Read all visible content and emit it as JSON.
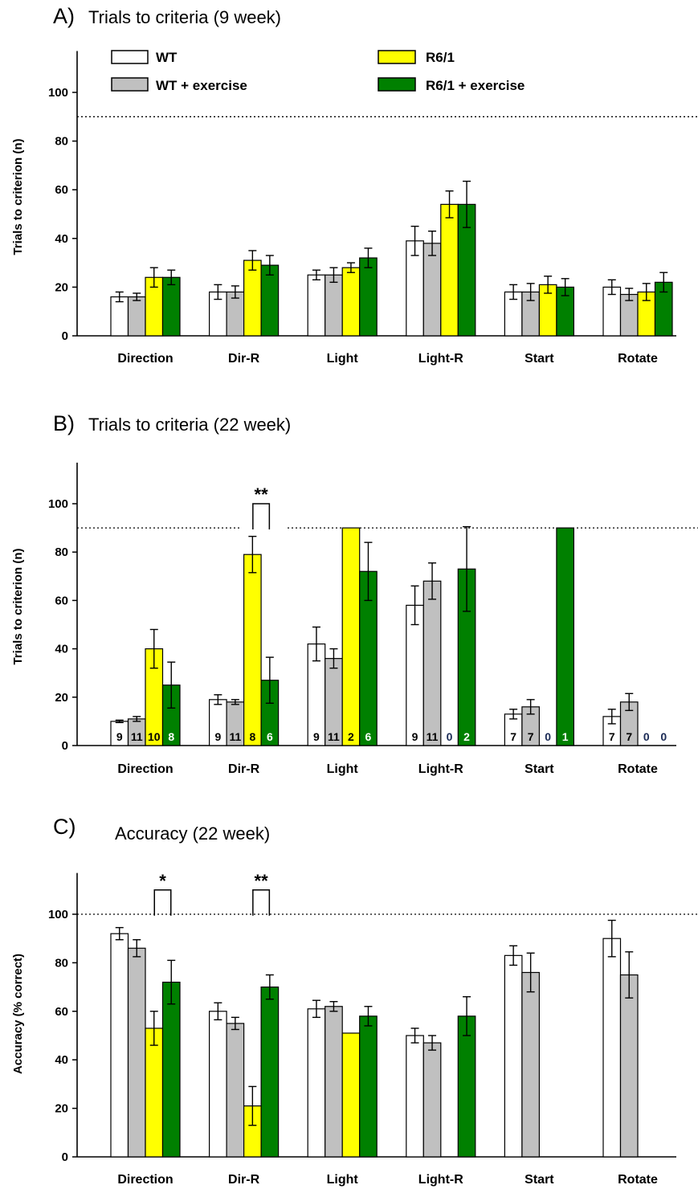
{
  "chart_data": [
    {
      "type": "bar",
      "letter": "A)",
      "title": "Trials to criteria (9 week)",
      "ylabel": "Trials to criterion (n)",
      "ylim": [
        0,
        120
      ],
      "yticks": [
        0,
        20,
        40,
        60,
        80,
        100
      ],
      "reference_line": 90,
      "categories": [
        "Direction",
        "Dir-R",
        "Light",
        "Light-R",
        "Start",
        "Rotate"
      ],
      "legend": [
        "WT",
        "WT + exercise",
        "R6/1",
        "R6/1 + exercise"
      ],
      "series": [
        {
          "name": "WT",
          "color": "#ffffff",
          "values": [
            16,
            18,
            25,
            39,
            18,
            20
          ],
          "errors": [
            2,
            3,
            2,
            6,
            3,
            3
          ]
        },
        {
          "name": "WT + exercise",
          "color": "#c0c0c0",
          "values": [
            16,
            18,
            25,
            38,
            18,
            17
          ],
          "errors": [
            1.5,
            2.5,
            3,
            5,
            3.5,
            2.5
          ]
        },
        {
          "name": "R6/1",
          "color": "#ffff00",
          "values": [
            24,
            31,
            28,
            54,
            21,
            18
          ],
          "errors": [
            4,
            4,
            2,
            5.5,
            3.5,
            3.5
          ]
        },
        {
          "name": "R6/1 + exercise",
          "color": "#008000",
          "values": [
            24,
            29,
            32,
            54,
            20,
            22
          ],
          "errors": [
            3,
            4,
            4,
            9.5,
            3.5,
            4
          ]
        }
      ]
    },
    {
      "type": "bar",
      "letter": "B)",
      "title": "Trials to criteria (22 week)",
      "ylabel": "Trials to criterion (n)",
      "ylim": [
        0,
        120
      ],
      "yticks": [
        0,
        20,
        40,
        60,
        80,
        100
      ],
      "reference_line": 90,
      "categories": [
        "Direction",
        "Dir-R",
        "Light",
        "Light-R",
        "Start",
        "Rotate"
      ],
      "series": [
        {
          "name": "WT",
          "color": "#ffffff",
          "values": [
            10,
            19,
            42,
            58,
            13,
            12
          ],
          "errors": [
            0.5,
            2,
            7,
            8,
            2,
            3
          ],
          "n": [
            "9",
            "9",
            "9",
            "9",
            "7",
            "7"
          ]
        },
        {
          "name": "WT + exercise",
          "color": "#c0c0c0",
          "values": [
            11,
            18,
            36,
            68,
            16,
            18
          ],
          "errors": [
            1,
            1,
            4,
            7.5,
            3,
            3.5
          ],
          "n": [
            "11",
            "11",
            "11",
            "11",
            "7",
            "7"
          ]
        },
        {
          "name": "R6/1",
          "color": "#ffff00",
          "values": [
            40,
            79,
            90,
            null,
            null,
            null
          ],
          "errors": [
            8,
            7.5,
            null,
            null,
            null,
            null
          ],
          "n": [
            "10",
            "8",
            "2",
            "0",
            "0",
            "0"
          ]
        },
        {
          "name": "R6/1 + exercise",
          "color": "#008000",
          "values": [
            25,
            27,
            72,
            73,
            90,
            null
          ],
          "errors": [
            9.5,
            9.5,
            12,
            17.5,
            null,
            null
          ],
          "n": [
            "8",
            "6",
            "6",
            "2",
            "1",
            "0"
          ]
        }
      ],
      "significance": [
        {
          "label": "**",
          "category": "Dir-R",
          "between": [
            "R6/1",
            "R6/1 + exercise"
          ]
        }
      ]
    },
    {
      "type": "bar",
      "letter": "C)",
      "title": "Accuracy (22 week)",
      "ylabel": "Accuracy (% correct)",
      "ylim": [
        0,
        120
      ],
      "yticks": [
        0,
        20,
        40,
        60,
        80,
        100
      ],
      "reference_line": 100,
      "categories": [
        "Direction",
        "Dir-R",
        "Light",
        "Light-R",
        "Start",
        "Rotate"
      ],
      "series": [
        {
          "name": "WT",
          "color": "#ffffff",
          "values": [
            92,
            60,
            61,
            50,
            83,
            90
          ],
          "errors": [
            2.5,
            3.5,
            3.5,
            3,
            4,
            7.5
          ]
        },
        {
          "name": "WT + exercise",
          "color": "#c0c0c0",
          "values": [
            86,
            55,
            62,
            47,
            76,
            75
          ],
          "errors": [
            3.5,
            2.5,
            2,
            3,
            8,
            9.5
          ]
        },
        {
          "name": "R6/1",
          "color": "#ffff00",
          "values": [
            53,
            21,
            51,
            null,
            null,
            null
          ],
          "errors": [
            7,
            8,
            null,
            null,
            null,
            null
          ]
        },
        {
          "name": "R6/1 + exercise",
          "color": "#008000",
          "values": [
            72,
            70,
            58,
            58,
            null,
            null
          ],
          "errors": [
            9,
            5,
            4,
            8,
            null,
            null
          ]
        }
      ],
      "significance": [
        {
          "label": "*",
          "category": "Direction",
          "between": [
            "R6/1",
            "R6/1 + exercise"
          ]
        },
        {
          "label": "**",
          "category": "Dir-R",
          "between": [
            "R6/1",
            "R6/1 + exercise"
          ]
        }
      ]
    }
  ]
}
